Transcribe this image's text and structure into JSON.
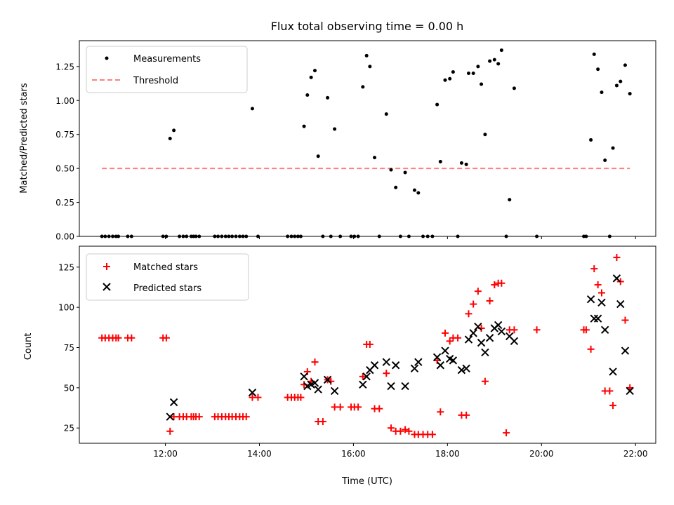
{
  "chart_data": [
    {
      "type": "scatter",
      "title": "Flux total observing time = 0.00 h",
      "xlabel": "",
      "ylabel": "Matched/Predicted stars",
      "xlim": [
        10.17,
        22.43
      ],
      "ylim": [
        0,
        1.44
      ],
      "xticks": [
        12,
        14,
        16,
        18,
        20,
        22
      ],
      "yticks": [
        0.0,
        0.25,
        0.5,
        0.75,
        1.0,
        1.25
      ],
      "ytick_labels": [
        "0.00",
        "0.25",
        "0.50",
        "0.75",
        "1.00",
        "1.25"
      ],
      "legend": {
        "placement": "top-left",
        "entries": [
          "Measurements",
          "Threshold"
        ]
      },
      "series": [
        {
          "name": "Measurements",
          "marker": "dot",
          "color": "#000000",
          "x": [
            10.65,
            10.72,
            10.8,
            10.88,
            10.95,
            11.0,
            11.2,
            11.28,
            11.95,
            12.02,
            12.1,
            12.18,
            12.3,
            12.38,
            12.45,
            12.55,
            12.6,
            12.65,
            12.72,
            13.05,
            13.12,
            13.2,
            13.28,
            13.35,
            13.42,
            13.5,
            13.58,
            13.65,
            13.72,
            13.85,
            13.97,
            14.6,
            14.68,
            14.75,
            14.82,
            14.88,
            14.95,
            15.02,
            15.1,
            15.18,
            15.25,
            15.35,
            15.45,
            15.52,
            15.6,
            15.72,
            15.95,
            16.02,
            16.1,
            16.2,
            16.28,
            16.35,
            16.45,
            16.55,
            16.7,
            16.8,
            16.9,
            17.0,
            17.1,
            17.18,
            17.3,
            17.38,
            17.48,
            17.58,
            17.68,
            17.78,
            17.85,
            17.95,
            18.05,
            18.12,
            18.22,
            18.3,
            18.4,
            18.45,
            18.55,
            18.65,
            18.72,
            18.8,
            18.9,
            19.0,
            19.08,
            19.15,
            19.25,
            19.32,
            19.42,
            19.9,
            20.9,
            20.95,
            21.05,
            21.12,
            21.2,
            21.28,
            21.35,
            21.45,
            21.52,
            21.6,
            21.68,
            21.78,
            21.88
          ],
          "y": [
            0,
            0,
            0,
            0,
            0,
            0,
            0,
            0,
            0,
            0,
            0.72,
            0.78,
            0,
            0,
            0,
            0,
            0,
            0,
            0,
            0,
            0,
            0,
            0,
            0,
            0,
            0,
            0,
            0,
            0,
            0.94,
            0,
            0,
            0,
            0,
            0,
            0,
            0.81,
            1.04,
            1.17,
            1.22,
            0.59,
            0,
            1.02,
            0,
            0.79,
            0,
            0,
            0,
            0,
            1.1,
            1.33,
            1.25,
            0.58,
            0,
            0.9,
            0.49,
            0.36,
            0,
            0.47,
            0,
            0.34,
            0.32,
            0,
            0,
            0,
            0.97,
            0.55,
            1.15,
            1.16,
            1.21,
            0,
            0.54,
            0.53,
            1.2,
            1.2,
            1.25,
            1.12,
            0.75,
            1.29,
            1.3,
            1.27,
            1.37,
            0,
            0.27,
            1.09,
            0,
            0,
            0,
            0.71,
            1.34,
            1.23,
            1.06,
            0.56,
            0,
            0.65,
            1.11,
            1.14,
            1.26,
            1.05
          ]
        },
        {
          "name": "Threshold",
          "marker": "dashed-line",
          "color": "#ff7f7f",
          "x": [
            10.65,
            21.88
          ],
          "y": [
            0.5,
            0.5
          ]
        }
      ]
    },
    {
      "type": "scatter",
      "title": "",
      "xlabel": "Time (UTC)",
      "ylabel": "Count",
      "xlim": [
        10.17,
        22.43
      ],
      "ylim": [
        15.5,
        138
      ],
      "xticks": [
        12,
        14,
        16,
        18,
        20,
        22
      ],
      "xtick_labels": [
        "12:00",
        "14:00",
        "16:00",
        "18:00",
        "20:00",
        "22:00"
      ],
      "yticks": [
        25,
        50,
        75,
        100,
        125
      ],
      "ytick_labels": [
        "25",
        "50",
        "75",
        "100",
        "125"
      ],
      "legend": {
        "placement": "top-left",
        "entries": [
          "Matched stars",
          "Predicted stars"
        ]
      },
      "series": [
        {
          "name": "Matched stars",
          "marker": "plus",
          "color": "#ff0000",
          "x": [
            10.65,
            10.72,
            10.8,
            10.88,
            10.95,
            11.0,
            11.2,
            11.28,
            11.95,
            12.02,
            12.1,
            12.18,
            12.3,
            12.38,
            12.45,
            12.55,
            12.6,
            12.65,
            12.72,
            13.05,
            13.12,
            13.2,
            13.28,
            13.35,
            13.42,
            13.5,
            13.58,
            13.65,
            13.72,
            13.85,
            13.97,
            14.6,
            14.68,
            14.75,
            14.82,
            14.88,
            14.95,
            15.02,
            15.1,
            15.18,
            15.25,
            15.35,
            15.45,
            15.52,
            15.6,
            15.72,
            15.95,
            16.02,
            16.1,
            16.2,
            16.28,
            16.35,
            16.45,
            16.55,
            16.7,
            16.8,
            16.9,
            17.0,
            17.1,
            17.18,
            17.3,
            17.38,
            17.48,
            17.58,
            17.68,
            17.78,
            17.85,
            17.95,
            18.05,
            18.12,
            18.22,
            18.3,
            18.4,
            18.45,
            18.55,
            18.65,
            18.72,
            18.8,
            18.9,
            19.0,
            19.08,
            19.15,
            19.25,
            19.32,
            19.42,
            19.9,
            20.9,
            20.95,
            21.05,
            21.12,
            21.2,
            21.28,
            21.35,
            21.45,
            21.52,
            21.6,
            21.68,
            21.78,
            21.88
          ],
          "y": [
            81,
            81,
            81,
            81,
            81,
            81,
            81,
            81,
            81,
            81,
            23,
            32,
            32,
            32,
            32,
            32,
            32,
            32,
            32,
            32,
            32,
            32,
            32,
            32,
            32,
            32,
            32,
            32,
            32,
            44,
            44,
            44,
            44,
            44,
            44,
            44,
            52,
            60,
            54,
            66,
            29,
            29,
            55,
            54,
            38,
            38,
            38,
            38,
            38,
            57,
            77,
            77,
            37,
            37,
            59,
            25,
            23,
            23,
            24,
            23,
            21,
            21,
            21,
            21,
            21,
            67,
            35,
            84,
            79,
            81,
            81,
            33,
            33,
            96,
            102,
            110,
            87,
            54,
            104,
            114,
            115,
            115,
            22,
            86,
            86,
            86,
            86,
            86,
            74,
            124,
            114,
            109,
            48,
            48,
            39,
            131,
            116,
            92,
            50
          ]
        },
        {
          "name": "Predicted stars",
          "marker": "x",
          "color": "#000000",
          "x": [
            12.1,
            12.18,
            13.85,
            14.95,
            15.02,
            15.1,
            15.18,
            15.25,
            15.45,
            15.6,
            16.2,
            16.28,
            16.35,
            16.45,
            16.7,
            16.8,
            16.9,
            17.1,
            17.3,
            17.38,
            17.78,
            17.85,
            17.95,
            18.05,
            18.12,
            18.3,
            18.4,
            18.45,
            18.55,
            18.65,
            18.72,
            18.8,
            18.9,
            19.0,
            19.08,
            19.15,
            19.32,
            19.42,
            21.05,
            21.12,
            21.2,
            21.28,
            21.35,
            21.52,
            21.6,
            21.68,
            21.78,
            21.88
          ],
          "y": [
            32,
            41,
            47,
            57,
            51,
            52,
            53,
            49,
            55,
            48,
            52,
            57,
            61,
            64,
            66,
            51,
            64,
            51,
            62,
            66,
            69,
            64,
            73,
            68,
            67,
            61,
            62,
            80,
            84,
            88,
            78,
            72,
            81,
            87,
            89,
            85,
            82,
            79,
            105,
            93,
            93,
            103,
            86,
            60,
            118,
            102,
            73,
            48
          ]
        }
      ]
    }
  ]
}
